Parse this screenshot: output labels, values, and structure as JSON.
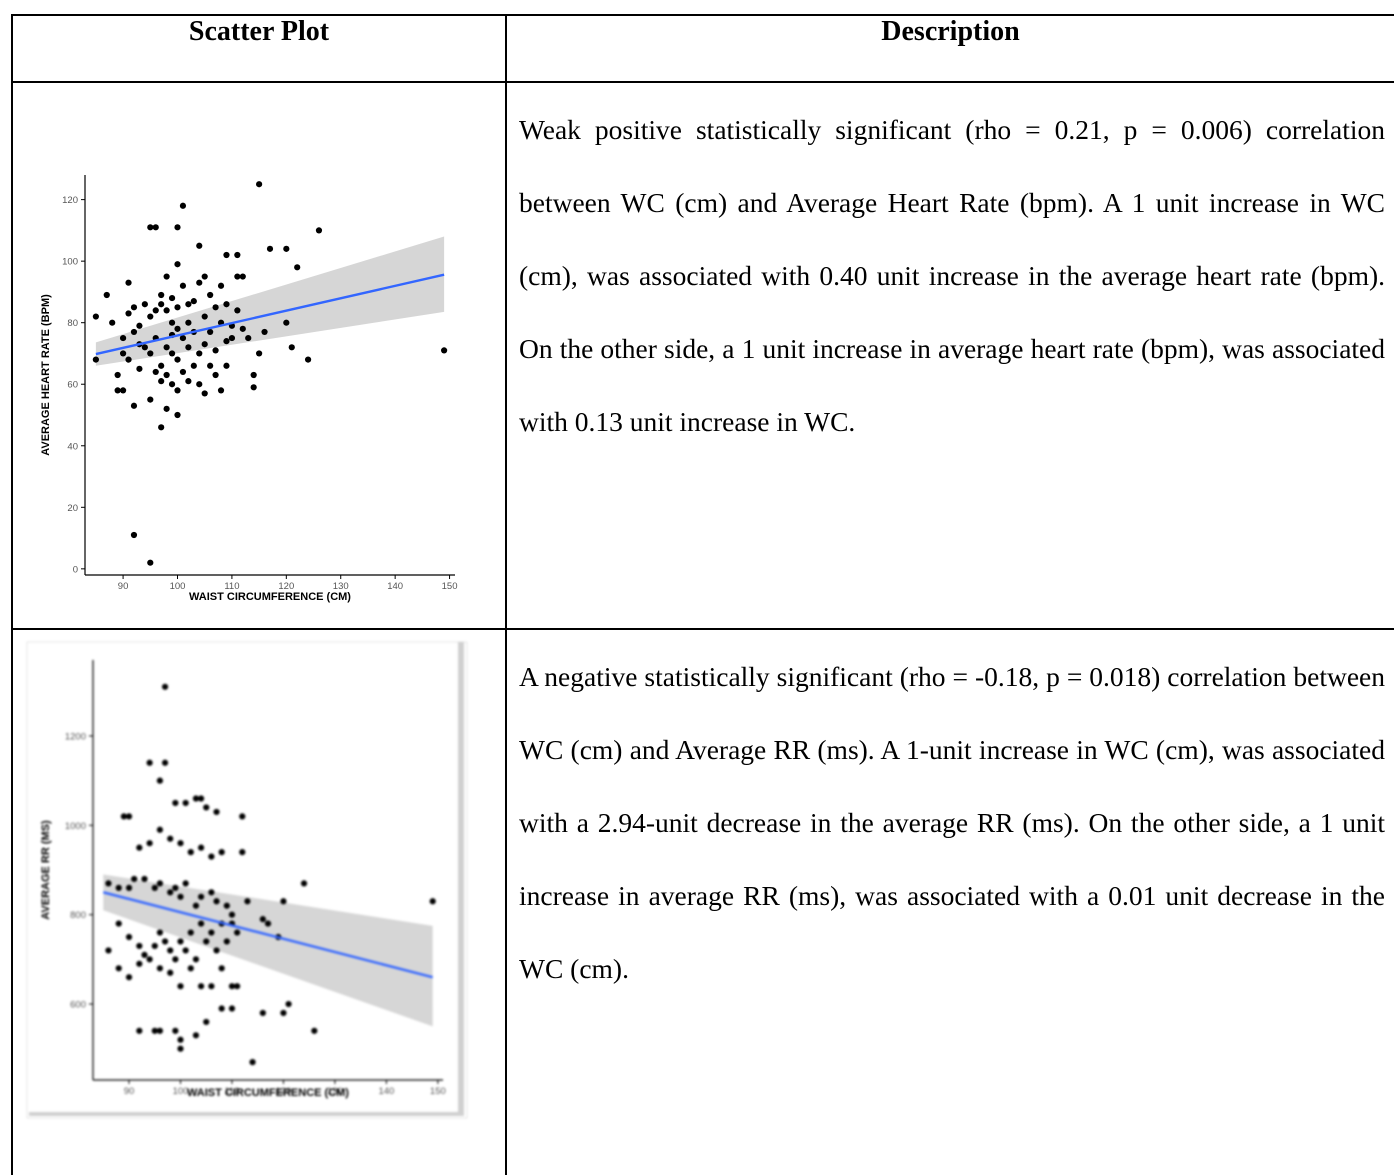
{
  "table": {
    "headers": [
      "Scatter Plot",
      "Description"
    ],
    "rows": [
      {
        "description": "Weak positive statistically significant (rho = 0.21, p = 0.006) correlation between WC (cm) and Average Heart Rate (bpm). A 1 unit increase in WC (cm), was associated with 0.40 unit increase in the average heart rate (bpm). On the other side, a 1 unit increase in average heart rate (bpm), was associated with 0.13 unit increase in WC."
      },
      {
        "description": "A negative statistically significant (rho = -0.18, p = 0.018) correlation between WC (cm) and Average RR (ms). A 1-unit increase in WC (cm), was associated with a 2.94-unit decrease in the average RR (ms). On the other side, a 1 unit increase in average RR (ms), was associated with a 0.01 unit decrease in the WC (cm)."
      }
    ]
  },
  "chart_data": [
    {
      "type": "scatter",
      "title": "",
      "xlabel": "WAIST CIRCUMFERENCE (CM)",
      "ylabel": "AVERAGE HEART RATE (BPM)",
      "xlim": [
        83,
        151
      ],
      "ylim": [
        -2,
        128
      ],
      "xticks": [
        90,
        100,
        110,
        120,
        130,
        140,
        150
      ],
      "yticks": [
        0,
        20,
        40,
        60,
        80,
        100,
        120
      ],
      "grid": false,
      "legend": "none",
      "colors": {
        "points": "#000000",
        "fit_line": "#3366ff",
        "confidence_band": "#cccccc"
      },
      "fit": {
        "x": [
          85,
          149
        ],
        "y": [
          69.8,
          95.6
        ],
        "ci_lower": [
          66.0,
          83.5
        ],
        "ci_upper": [
          73.6,
          108.0
        ]
      },
      "points": [
        [
          95,
          2
        ],
        [
          92,
          11
        ],
        [
          97,
          46
        ],
        [
          85,
          68
        ],
        [
          92,
          53
        ],
        [
          95,
          55
        ],
        [
          98,
          52
        ],
        [
          100,
          50
        ],
        [
          85,
          82
        ],
        [
          87,
          89
        ],
        [
          88,
          80
        ],
        [
          89,
          63
        ],
        [
          89,
          58
        ],
        [
          90,
          58
        ],
        [
          90,
          70
        ],
        [
          90,
          75
        ],
        [
          91,
          83
        ],
        [
          91,
          93
        ],
        [
          91,
          68
        ],
        [
          92,
          77
        ],
        [
          92,
          85
        ],
        [
          93,
          73
        ],
        [
          93,
          65
        ],
        [
          93,
          79
        ],
        [
          94,
          86
        ],
        [
          94,
          72
        ],
        [
          95,
          111
        ],
        [
          95,
          82
        ],
        [
          95,
          70
        ],
        [
          96,
          111
        ],
        [
          96,
          84
        ],
        [
          96,
          64
        ],
        [
          96,
          75
        ],
        [
          97,
          86
        ],
        [
          97,
          66
        ],
        [
          97,
          89
        ],
        [
          97,
          61
        ],
        [
          98,
          95
        ],
        [
          98,
          72
        ],
        [
          98,
          84
        ],
        [
          98,
          63
        ],
        [
          99,
          80
        ],
        [
          99,
          60
        ],
        [
          99,
          70
        ],
        [
          99,
          88
        ],
        [
          99,
          76
        ],
        [
          100,
          111
        ],
        [
          100,
          99
        ],
        [
          100,
          85
        ],
        [
          100,
          68
        ],
        [
          100,
          58
        ],
        [
          100,
          78
        ],
        [
          101,
          118
        ],
        [
          101,
          92
        ],
        [
          101,
          75
        ],
        [
          101,
          64
        ],
        [
          102,
          86
        ],
        [
          102,
          72
        ],
        [
          102,
          61
        ],
        [
          102,
          80
        ],
        [
          103,
          87
        ],
        [
          103,
          66
        ],
        [
          103,
          77
        ],
        [
          104,
          105
        ],
        [
          104,
          93
        ],
        [
          104,
          70
        ],
        [
          104,
          60
        ],
        [
          105,
          95
        ],
        [
          105,
          82
        ],
        [
          105,
          57
        ],
        [
          105,
          73
        ],
        [
          106,
          89
        ],
        [
          106,
          66
        ],
        [
          106,
          77
        ],
        [
          107,
          85
        ],
        [
          107,
          63
        ],
        [
          107,
          71
        ],
        [
          108,
          92
        ],
        [
          108,
          80
        ],
        [
          108,
          58
        ],
        [
          109,
          102
        ],
        [
          109,
          86
        ],
        [
          109,
          74
        ],
        [
          109,
          66
        ],
        [
          110,
          79
        ],
        [
          110,
          75
        ],
        [
          111,
          102
        ],
        [
          111,
          95
        ],
        [
          111,
          84
        ],
        [
          112,
          95
        ],
        [
          112,
          78
        ],
        [
          113,
          75
        ],
        [
          114,
          63
        ],
        [
          114,
          59
        ],
        [
          115,
          125
        ],
        [
          115,
          70
        ],
        [
          116,
          77
        ],
        [
          117,
          104
        ],
        [
          120,
          104
        ],
        [
          120,
          80
        ],
        [
          121,
          72
        ],
        [
          122,
          98
        ],
        [
          124,
          68
        ],
        [
          126,
          110
        ],
        [
          149,
          71
        ]
      ]
    },
    {
      "type": "scatter",
      "title": "",
      "xlabel": "WAIST CIRCUMFERENCE (CM)",
      "ylabel": "AVERAGE RR (MS)",
      "xlim": [
        83,
        151
      ],
      "ylim": [
        430,
        1370
      ],
      "xticks": [
        90,
        100,
        110,
        120,
        130,
        140,
        150
      ],
      "yticks": [
        600,
        800,
        1000,
        1200
      ],
      "grid": false,
      "legend": "none",
      "colors": {
        "points": "#000000",
        "fit_line": "#3366ff",
        "confidence_band": "#cccccc"
      },
      "fit": {
        "x": [
          85,
          149
        ],
        "y": [
          850,
          660
        ],
        "ci_lower": [
          810,
          550
        ],
        "ci_upper": [
          890,
          775
        ]
      },
      "points": [
        [
          97,
          1310
        ],
        [
          94,
          1140
        ],
        [
          97,
          1140
        ],
        [
          96,
          1100
        ],
        [
          99,
          1050
        ],
        [
          101,
          1050
        ],
        [
          103,
          1060
        ],
        [
          104,
          1060
        ],
        [
          105,
          1040
        ],
        [
          107,
          1030
        ],
        [
          112,
          1020
        ],
        [
          89,
          1020
        ],
        [
          90,
          1020
        ],
        [
          92,
          950
        ],
        [
          94,
          960
        ],
        [
          96,
          990
        ],
        [
          98,
          970
        ],
        [
          100,
          960
        ],
        [
          102,
          940
        ],
        [
          104,
          950
        ],
        [
          106,
          930
        ],
        [
          108,
          940
        ],
        [
          112,
          940
        ],
        [
          86,
          870
        ],
        [
          88,
          860
        ],
        [
          90,
          860
        ],
        [
          91,
          880
        ],
        [
          93,
          880
        ],
        [
          95,
          860
        ],
        [
          96,
          870
        ],
        [
          98,
          850
        ],
        [
          99,
          860
        ],
        [
          100,
          840
        ],
        [
          101,
          870
        ],
        [
          103,
          820
        ],
        [
          104,
          840
        ],
        [
          106,
          850
        ],
        [
          107,
          830
        ],
        [
          109,
          820
        ],
        [
          110,
          800
        ],
        [
          113,
          830
        ],
        [
          116,
          790
        ],
        [
          117,
          780
        ],
        [
          120,
          830
        ],
        [
          124,
          870
        ],
        [
          149,
          830
        ],
        [
          88,
          780
        ],
        [
          90,
          750
        ],
        [
          92,
          730
        ],
        [
          93,
          710
        ],
        [
          95,
          730
        ],
        [
          96,
          760
        ],
        [
          97,
          740
        ],
        [
          98,
          720
        ],
        [
          99,
          700
        ],
        [
          100,
          740
        ],
        [
          101,
          720
        ],
        [
          102,
          760
        ],
        [
          103,
          700
        ],
        [
          104,
          780
        ],
        [
          105,
          740
        ],
        [
          106,
          760
        ],
        [
          107,
          720
        ],
        [
          108,
          780
        ],
        [
          109,
          740
        ],
        [
          110,
          780
        ],
        [
          111,
          760
        ],
        [
          119,
          750
        ],
        [
          86,
          720
        ],
        [
          88,
          680
        ],
        [
          90,
          660
        ],
        [
          92,
          690
        ],
        [
          94,
          700
        ],
        [
          96,
          680
        ],
        [
          98,
          670
        ],
        [
          100,
          640
        ],
        [
          102,
          680
        ],
        [
          104,
          640
        ],
        [
          106,
          640
        ],
        [
          108,
          680
        ],
        [
          110,
          640
        ],
        [
          111,
          640
        ],
        [
          92,
          540
        ],
        [
          95,
          540
        ],
        [
          96,
          540
        ],
        [
          99,
          540
        ],
        [
          100,
          520
        ],
        [
          100,
          500
        ],
        [
          103,
          530
        ],
        [
          105,
          560
        ],
        [
          108,
          590
        ],
        [
          110,
          590
        ],
        [
          114,
          470
        ],
        [
          116,
          580
        ],
        [
          120,
          580
        ],
        [
          121,
          600
        ],
        [
          126,
          540
        ]
      ]
    }
  ]
}
